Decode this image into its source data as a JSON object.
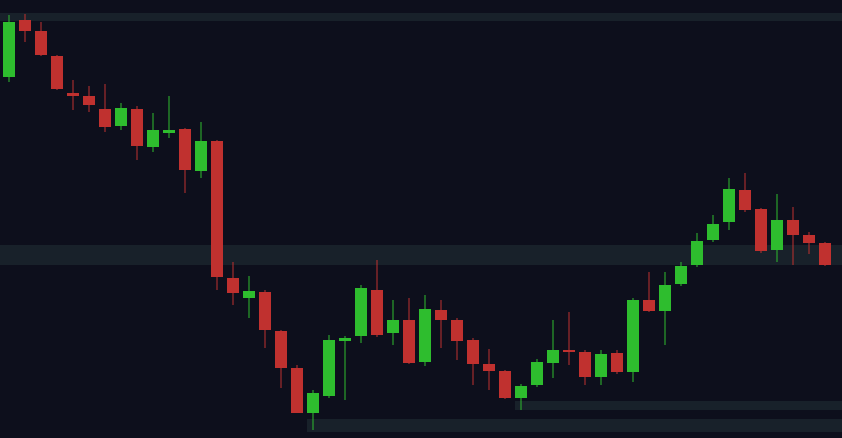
{
  "chart_data": {
    "type": "candlestick",
    "ylim": [
      0,
      438
    ],
    "up_color": "#2ebd2e",
    "down_color": "#c0312f",
    "zone_color": "#18212a",
    "open": [
      361,
      418,
      407,
      382,
      345,
      342,
      329,
      312,
      329,
      291,
      305,
      309,
      267,
      297,
      160,
      140,
      146,
      107,
      70,
      25,
      42,
      97,
      102,
      148,
      105,
      118,
      76,
      128,
      118,
      98,
      74,
      67,
      40,
      53,
      75,
      88,
      86,
      61,
      85,
      66,
      138,
      127,
      154,
      173,
      198,
      216,
      248,
      229,
      188,
      218,
      203,
      195
    ],
    "high": [
      423,
      424,
      416,
      383,
      358,
      352,
      354,
      335,
      332,
      325,
      342,
      310,
      316,
      298,
      176,
      162,
      148,
      108,
      73,
      48,
      103,
      102,
      153,
      178,
      138,
      140,
      143,
      138,
      120,
      100,
      89,
      68,
      54,
      79,
      118,
      126,
      88,
      88,
      88,
      140,
      166,
      166,
      176,
      205,
      223,
      260,
      265,
      230,
      244,
      231,
      206,
      196
    ],
    "low": [
      356,
      396,
      382,
      348,
      328,
      326,
      306,
      308,
      278,
      286,
      300,
      245,
      260,
      148,
      133,
      120,
      90,
      50,
      25,
      8,
      40,
      38,
      95,
      101,
      93,
      74,
      72,
      90,
      78,
      53,
      48,
      39,
      28,
      51,
      60,
      73,
      53,
      53,
      64,
      56,
      126,
      93,
      152,
      171,
      196,
      208,
      226,
      185,
      176,
      173,
      184,
      172
    ],
    "close": [
      416,
      407,
      383,
      349,
      342,
      333,
      311,
      330,
      292,
      308,
      308,
      268,
      297,
      161,
      145,
      147,
      108,
      70,
      25,
      45,
      98,
      100,
      150,
      103,
      118,
      75,
      129,
      118,
      97,
      74,
      67,
      40,
      52,
      76,
      88,
      86,
      61,
      84,
      66,
      138,
      127,
      153,
      172,
      197,
      214,
      249,
      228,
      187,
      218,
      203,
      195,
      173
    ],
    "zones": [
      {
        "low": 417,
        "high": 425,
        "start": 0
      },
      {
        "low": 173,
        "high": 193,
        "start": 0
      },
      {
        "low": 28,
        "high": 37,
        "start": 32
      },
      {
        "low": 6,
        "high": 19,
        "start": 19
      }
    ]
  }
}
